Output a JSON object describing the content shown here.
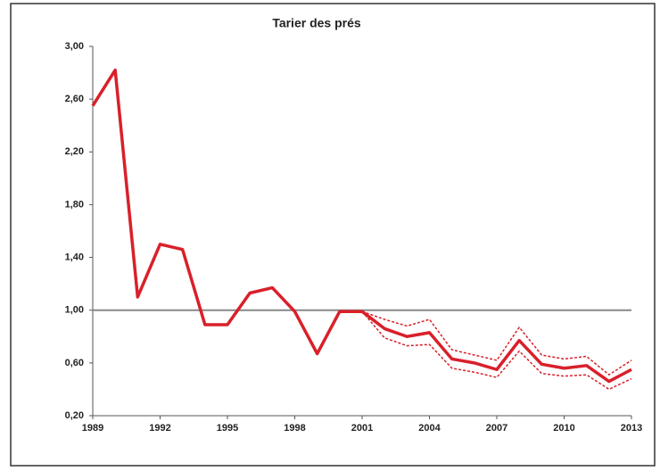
{
  "chart_data": {
    "type": "line",
    "title": "Tarier des prés",
    "x": [
      1989,
      1990,
      1991,
      1992,
      1993,
      1994,
      1995,
      1996,
      1997,
      1998,
      1999,
      2000,
      2001,
      2002,
      2003,
      2004,
      2005,
      2006,
      2007,
      2008,
      2009,
      2010,
      2011,
      2012,
      2013
    ],
    "series": [
      {
        "color": "#d9202a",
        "style": "solid",
        "values": [
          2.55,
          2.82,
          1.1,
          1.5,
          1.46,
          0.89,
          0.89,
          1.13,
          1.17,
          0.99,
          0.67,
          0.99,
          0.99,
          0.86,
          0.8,
          0.83,
          0.63,
          0.6,
          0.55,
          0.77,
          0.59,
          0.56,
          0.58,
          0.46,
          0.55
        ]
      },
      {
        "color": "#d9202a",
        "style": "dotted",
        "values": [
          null,
          null,
          null,
          null,
          null,
          null,
          null,
          null,
          null,
          null,
          null,
          null,
          0.99,
          0.93,
          0.88,
          0.93,
          0.7,
          0.66,
          0.62,
          0.87,
          0.66,
          0.63,
          0.65,
          0.51,
          0.62
        ]
      },
      {
        "color": "#d9202a",
        "style": "dotted",
        "values": [
          null,
          null,
          null,
          null,
          null,
          null,
          null,
          null,
          null,
          null,
          null,
          null,
          0.99,
          0.79,
          0.73,
          0.74,
          0.56,
          0.53,
          0.49,
          0.69,
          0.52,
          0.5,
          0.51,
          0.4,
          0.48
        ]
      }
    ],
    "xlim": [
      1989,
      2013
    ],
    "xticks": [
      1989,
      1992,
      1995,
      1998,
      2001,
      2004,
      2007,
      2010,
      2013
    ],
    "ylim": [
      0.2,
      3.0
    ],
    "yticks": [
      {
        "value": 0.2,
        "label": "0,20"
      },
      {
        "value": 0.6,
        "label": "0,60"
      },
      {
        "value": 1.0,
        "label": "1,00"
      },
      {
        "value": 1.4,
        "label": "1,40"
      },
      {
        "value": 1.8,
        "label": "1,80"
      },
      {
        "value": 2.2,
        "label": "2,20"
      },
      {
        "value": 2.6,
        "label": "2,60"
      },
      {
        "value": 3.0,
        "label": "3,00"
      }
    ],
    "reference_line": 1.0,
    "reference_color": "#888888",
    "grid": false
  }
}
